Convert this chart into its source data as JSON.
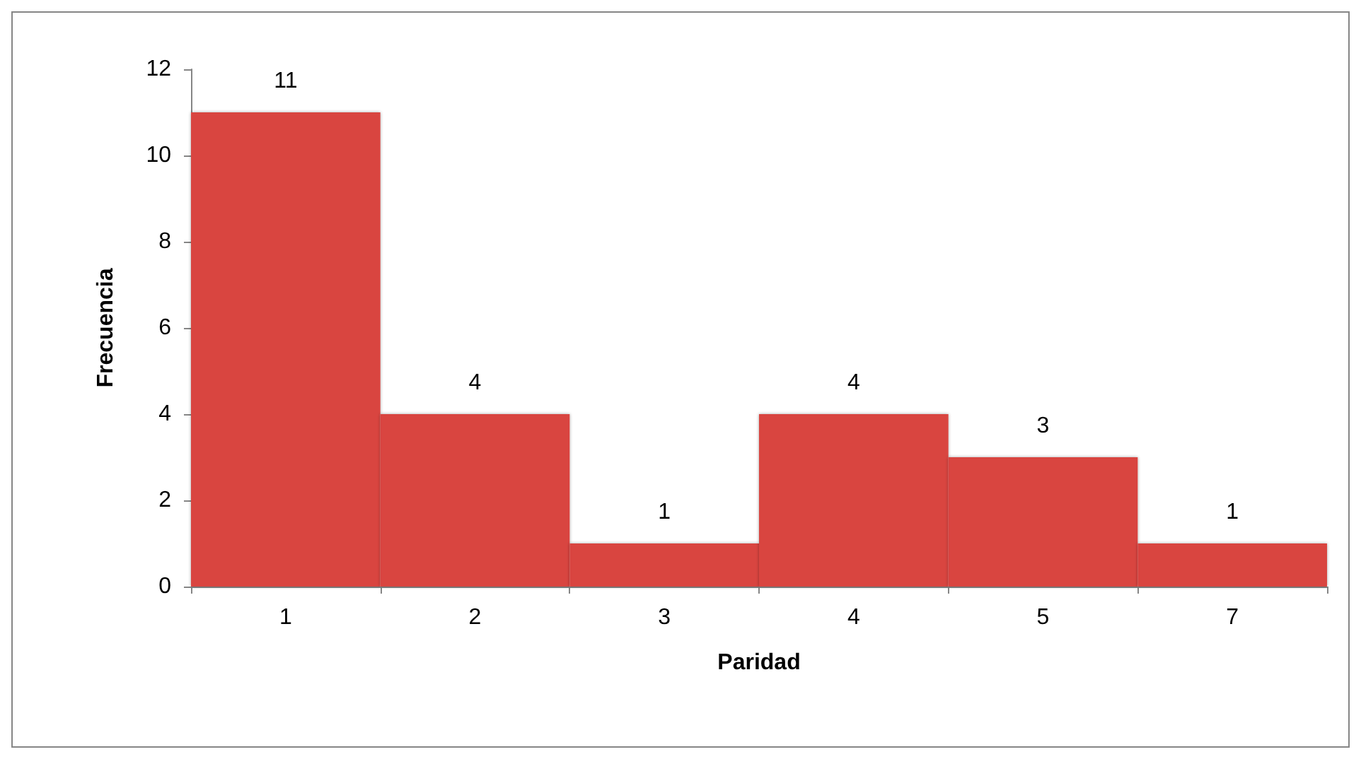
{
  "chart_data": {
    "type": "bar",
    "xlabel": "Paridad",
    "ylabel": "Frecuencia",
    "categories": [
      "1",
      "2",
      "3",
      "4",
      "5",
      "7"
    ],
    "values": [
      11,
      4,
      1,
      4,
      3,
      1
    ],
    "color": "#d94441",
    "ylim": [
      0,
      12
    ],
    "yticks": [
      0,
      2,
      4,
      6,
      8,
      10,
      12
    ],
    "data_labels": true,
    "grid": false
  }
}
